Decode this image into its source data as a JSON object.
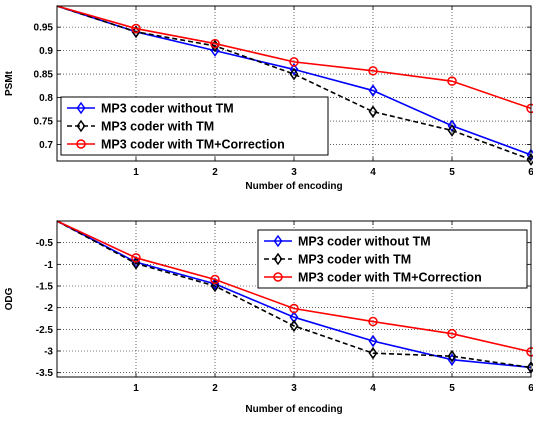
{
  "chart_data": [
    {
      "type": "line",
      "x": [
        0,
        1,
        2,
        3,
        4,
        5,
        6
      ],
      "xlim": [
        0,
        6
      ],
      "xticks": [
        "1",
        "2",
        "3",
        "4",
        "5",
        "6"
      ],
      "xlabel": "Number of encoding",
      "ylabel": "PSMt",
      "ylim": [
        0.665,
        0.995
      ],
      "yticks": [
        "0.7",
        "0.75",
        "0.8",
        "0.85",
        "0.9",
        "0.95"
      ],
      "grid": true,
      "legend_position": "lower-left",
      "series": [
        {
          "name": "MP3 coder without TM",
          "color": "#0000ff",
          "style": "solid",
          "marker": "diamond",
          "values": [
            0.995,
            0.94,
            0.9,
            0.86,
            0.815,
            0.74,
            0.678
          ]
        },
        {
          "name": "MP3 coder with TM",
          "color": "#000000",
          "style": "dashed",
          "marker": "diamond",
          "values": [
            0.995,
            0.94,
            0.91,
            0.85,
            0.77,
            0.73,
            0.668
          ]
        },
        {
          "name": "MP3 coder with TM+Correction",
          "color": "#ff0000",
          "style": "solid",
          "marker": "circle",
          "values": [
            0.995,
            0.947,
            0.915,
            0.876,
            0.857,
            0.835,
            0.777
          ]
        }
      ]
    },
    {
      "type": "line",
      "x": [
        0,
        1,
        2,
        3,
        4,
        5,
        6
      ],
      "xlim": [
        0,
        6
      ],
      "xticks": [
        "1",
        "2",
        "3",
        "4",
        "5",
        "6"
      ],
      "xlabel": "Number of encoding",
      "ylabel": "ODG",
      "ylim": [
        -3.6,
        0
      ],
      "yticks": [
        "-3.5",
        "-3",
        "-2.5",
        "-2",
        "-1.5",
        "-1",
        "-0.5"
      ],
      "grid": true,
      "legend_position": "top-right",
      "series": [
        {
          "name": "MP3 coder without TM",
          "color": "#0000ff",
          "style": "solid",
          "marker": "diamond",
          "values": [
            0,
            -0.95,
            -1.45,
            -2.22,
            -2.77,
            -3.2,
            -3.38
          ]
        },
        {
          "name": "MP3 coder with TM",
          "color": "#000000",
          "style": "dashed",
          "marker": "diamond",
          "values": [
            0,
            -0.98,
            -1.5,
            -2.42,
            -3.05,
            -3.12,
            -3.38
          ]
        },
        {
          "name": "MP3 coder with TM+Correction",
          "color": "#ff0000",
          "style": "solid",
          "marker": "circle",
          "values": [
            0,
            -0.85,
            -1.35,
            -2.02,
            -2.32,
            -2.6,
            -3.02
          ]
        }
      ]
    }
  ]
}
